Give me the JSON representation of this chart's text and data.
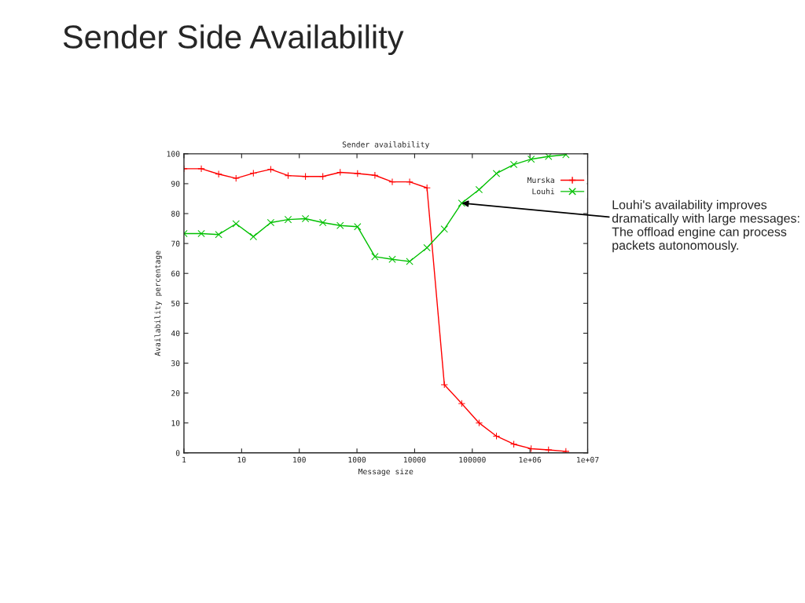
{
  "chart_data": {
    "type": "line",
    "title": "Sender Side Availability",
    "subtitle": "Sender availability",
    "xlabel": "Message size",
    "ylabel": "Availability percentage",
    "x": [
      1,
      2,
      4,
      8,
      16,
      32,
      64,
      128,
      256,
      512,
      1024,
      2048,
      4096,
      8192,
      16384,
      32768,
      65536,
      131072,
      262144,
      524288,
      1048576,
      2097152,
      4194304
    ],
    "series": [
      {
        "name": "Murska",
        "color": "#ff0000",
        "marker": "plus",
        "values": [
          95,
          95,
          93.2,
          91.8,
          93.5,
          94.8,
          92.7,
          92.4,
          92.4,
          93.8,
          93.4,
          92.8,
          90.6,
          90.6,
          88.6,
          22.8,
          16.5,
          10,
          5.6,
          2.9,
          1.4,
          1,
          0.5
        ]
      },
      {
        "name": "Louhi",
        "color": "#00c000",
        "marker": "cross",
        "values": [
          73.3,
          73.3,
          73,
          76.6,
          72.3,
          77,
          78,
          78.3,
          77,
          76,
          75.6,
          65.6,
          64.7,
          64,
          68.6,
          74.8,
          83.5,
          88,
          93.4,
          96.4,
          98.2,
          99.1,
          99.7
        ]
      }
    ],
    "log": "x",
    "xlim": [
      1,
      10000000
    ],
    "xticks": [
      1,
      10,
      100,
      1000,
      10000,
      100000,
      {
        "value": 1000000,
        "label": "1e+06"
      },
      {
        "value": 10000000,
        "label": "1e+07"
      }
    ],
    "ylim": [
      0,
      100
    ],
    "yticks": [
      0,
      10,
      20,
      30,
      40,
      50,
      60,
      70,
      80,
      90,
      100
    ],
    "grid": false,
    "legend": "top right",
    "annotations": [
      {
        "text": "Louhi's availability improves dramatically with large messages: The offload engine can process packets autonomously.",
        "x": 65536,
        "y": 83.5
      }
    ]
  }
}
